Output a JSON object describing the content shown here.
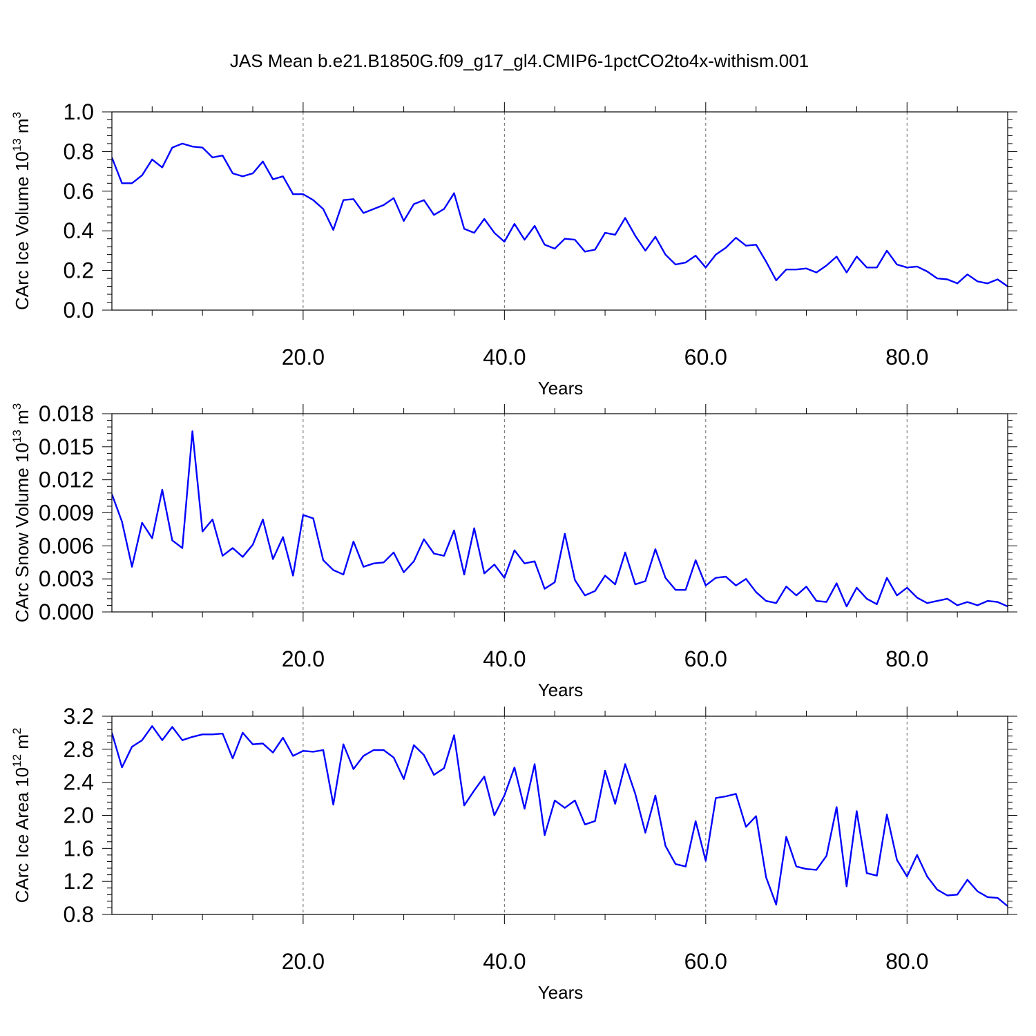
{
  "title": "JAS Mean b.e21.B1850G.f09_g17_gl4.CMIP6-1pctCO2to4x-withism.001",
  "colors": {
    "line": "#0000ff",
    "axis": "#000000",
    "grid": "#666666"
  },
  "chart_data": [
    {
      "type": "line",
      "ylabel": "CArc Ice Volume 10",
      "ylabel_exp": "13",
      "ylabel_unit": " m",
      "ylabel_unit_exp": "3",
      "xlabel": "Years",
      "xlim": [
        1,
        90
      ],
      "ylim": [
        0.0,
        1.0
      ],
      "xticks": [
        20,
        40,
        60,
        80
      ],
      "xtick_labels": [
        "20.0",
        "40.0",
        "60.0",
        "80.0"
      ],
      "yticks": [
        0.0,
        0.2,
        0.4,
        0.6,
        0.8,
        1.0
      ],
      "ytick_labels": [
        "0.0",
        "0.2",
        "0.4",
        "0.6",
        "0.8",
        "1.0"
      ],
      "grid": "vertical dashed at major x ticks",
      "y": [
        0.77,
        0.64,
        0.64,
        0.68,
        0.76,
        0.72,
        0.82,
        0.84,
        0.825,
        0.82,
        0.77,
        0.78,
        0.69,
        0.675,
        0.69,
        0.75,
        0.66,
        0.675,
        0.585,
        0.585,
        0.555,
        0.51,
        0.405,
        0.555,
        0.56,
        0.49,
        0.51,
        0.53,
        0.565,
        0.45,
        0.535,
        0.555,
        0.48,
        0.51,
        0.59,
        0.41,
        0.39,
        0.46,
        0.39,
        0.345,
        0.435,
        0.355,
        0.425,
        0.33,
        0.31,
        0.36,
        0.355,
        0.295,
        0.305,
        0.39,
        0.38,
        0.465,
        0.375,
        0.3,
        0.37,
        0.28,
        0.23,
        0.24,
        0.275,
        0.215,
        0.28,
        0.315,
        0.365,
        0.325,
        0.33,
        0.245,
        0.15,
        0.205,
        0.205,
        0.21,
        0.19,
        0.225,
        0.27,
        0.19,
        0.27,
        0.215,
        0.215,
        0.3,
        0.23,
        0.215,
        0.22,
        0.195,
        0.16,
        0.155,
        0.135,
        0.18,
        0.145,
        0.135,
        0.155,
        0.12
      ]
    },
    {
      "type": "line",
      "ylabel": "CArc Snow Volume 10",
      "ylabel_exp": "13",
      "ylabel_unit": " m",
      "ylabel_unit_exp": "3",
      "xlabel": "Years",
      "xlim": [
        1,
        90
      ],
      "ylim": [
        0.0,
        0.018
      ],
      "xticks": [
        20,
        40,
        60,
        80
      ],
      "xtick_labels": [
        "20.0",
        "40.0",
        "60.0",
        "80.0"
      ],
      "yticks": [
        0.0,
        0.003,
        0.006,
        0.009,
        0.012,
        0.015,
        0.018
      ],
      "ytick_labels": [
        "0.000",
        "0.003",
        "0.006",
        "0.009",
        "0.012",
        "0.015",
        "0.018"
      ],
      "grid": "vertical dashed at major x ticks",
      "y": [
        0.0107,
        0.0082,
        0.0041,
        0.0081,
        0.0067,
        0.0111,
        0.0065,
        0.0058,
        0.0164,
        0.0073,
        0.0084,
        0.0051,
        0.0058,
        0.005,
        0.0061,
        0.0084,
        0.0048,
        0.0068,
        0.0033,
        0.0088,
        0.0085,
        0.0047,
        0.0038,
        0.0034,
        0.0064,
        0.0041,
        0.0044,
        0.0045,
        0.0054,
        0.0036,
        0.0046,
        0.0066,
        0.0053,
        0.0051,
        0.0074,
        0.0034,
        0.0076,
        0.0035,
        0.0043,
        0.0031,
        0.0056,
        0.0044,
        0.0046,
        0.0021,
        0.0027,
        0.0071,
        0.0029,
        0.0015,
        0.0019,
        0.0033,
        0.0025,
        0.0054,
        0.0025,
        0.0028,
        0.0057,
        0.0031,
        0.002,
        0.002,
        0.0047,
        0.0024,
        0.0031,
        0.0032,
        0.0024,
        0.003,
        0.0018,
        0.001,
        0.0008,
        0.0023,
        0.0015,
        0.0023,
        0.001,
        0.0009,
        0.0026,
        0.0005,
        0.0022,
        0.0012,
        0.0007,
        0.0031,
        0.0015,
        0.0022,
        0.0013,
        0.0008,
        0.001,
        0.0012,
        0.0006,
        0.0009,
        0.0006,
        0.001,
        0.0009,
        0.0005
      ]
    },
    {
      "type": "line",
      "ylabel": "CArc Ice Area 10",
      "ylabel_exp": "12",
      "ylabel_unit": " m",
      "ylabel_unit_exp": "2",
      "xlabel": "Years",
      "xlim": [
        1,
        90
      ],
      "ylim": [
        0.8,
        3.2
      ],
      "xticks": [
        20,
        40,
        60,
        80
      ],
      "xtick_labels": [
        "20.0",
        "40.0",
        "60.0",
        "80.0"
      ],
      "yticks": [
        0.8,
        1.2,
        1.6,
        2.0,
        2.4,
        2.8,
        3.2
      ],
      "ytick_labels": [
        "0.8",
        "1.2",
        "1.6",
        "2.0",
        "2.4",
        "2.8",
        "3.2"
      ],
      "grid": "vertical dashed at major x ticks",
      "y": [
        3.0,
        2.58,
        2.83,
        2.91,
        3.08,
        2.91,
        3.07,
        2.91,
        2.95,
        2.98,
        2.98,
        2.99,
        2.69,
        3.0,
        2.86,
        2.87,
        2.76,
        2.94,
        2.72,
        2.78,
        2.77,
        2.79,
        2.13,
        2.86,
        2.56,
        2.72,
        2.79,
        2.79,
        2.7,
        2.44,
        2.85,
        2.73,
        2.49,
        2.57,
        2.97,
        2.12,
        2.3,
        2.47,
        2.0,
        2.24,
        2.58,
        2.08,
        2.62,
        1.76,
        2.18,
        2.09,
        2.18,
        1.89,
        1.93,
        2.54,
        2.14,
        2.62,
        2.26,
        1.79,
        2.24,
        1.63,
        1.41,
        1.38,
        1.93,
        1.45,
        2.21,
        2.23,
        2.26,
        1.86,
        1.99,
        1.25,
        0.92,
        1.74,
        1.38,
        1.35,
        1.34,
        1.51,
        2.1,
        1.14,
        2.05,
        1.3,
        1.27,
        2.01,
        1.46,
        1.26,
        1.52,
        1.26,
        1.1,
        1.03,
        1.04,
        1.22,
        1.08,
        1.01,
        1.0,
        0.9
      ]
    }
  ]
}
